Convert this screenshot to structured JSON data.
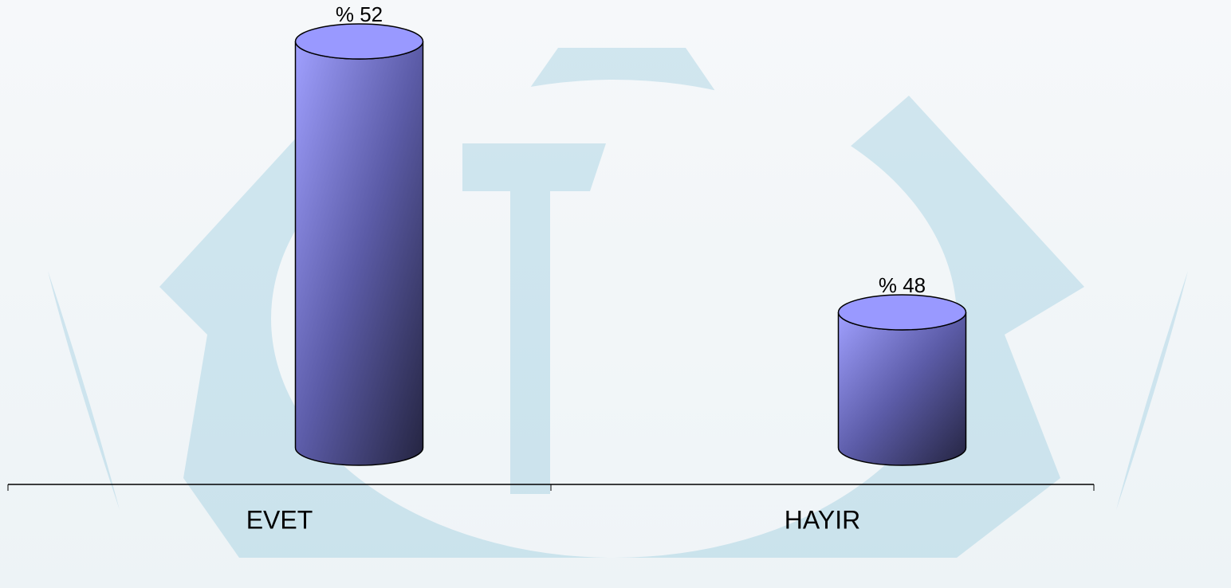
{
  "chart_data": {
    "type": "bar",
    "categories": [
      "EVET",
      "HAYIR"
    ],
    "values": [
      52,
      48
    ],
    "value_labels": [
      "% 52",
      "% 48"
    ],
    "color": "#9999ff",
    "ylim": [
      46,
      52
    ]
  }
}
